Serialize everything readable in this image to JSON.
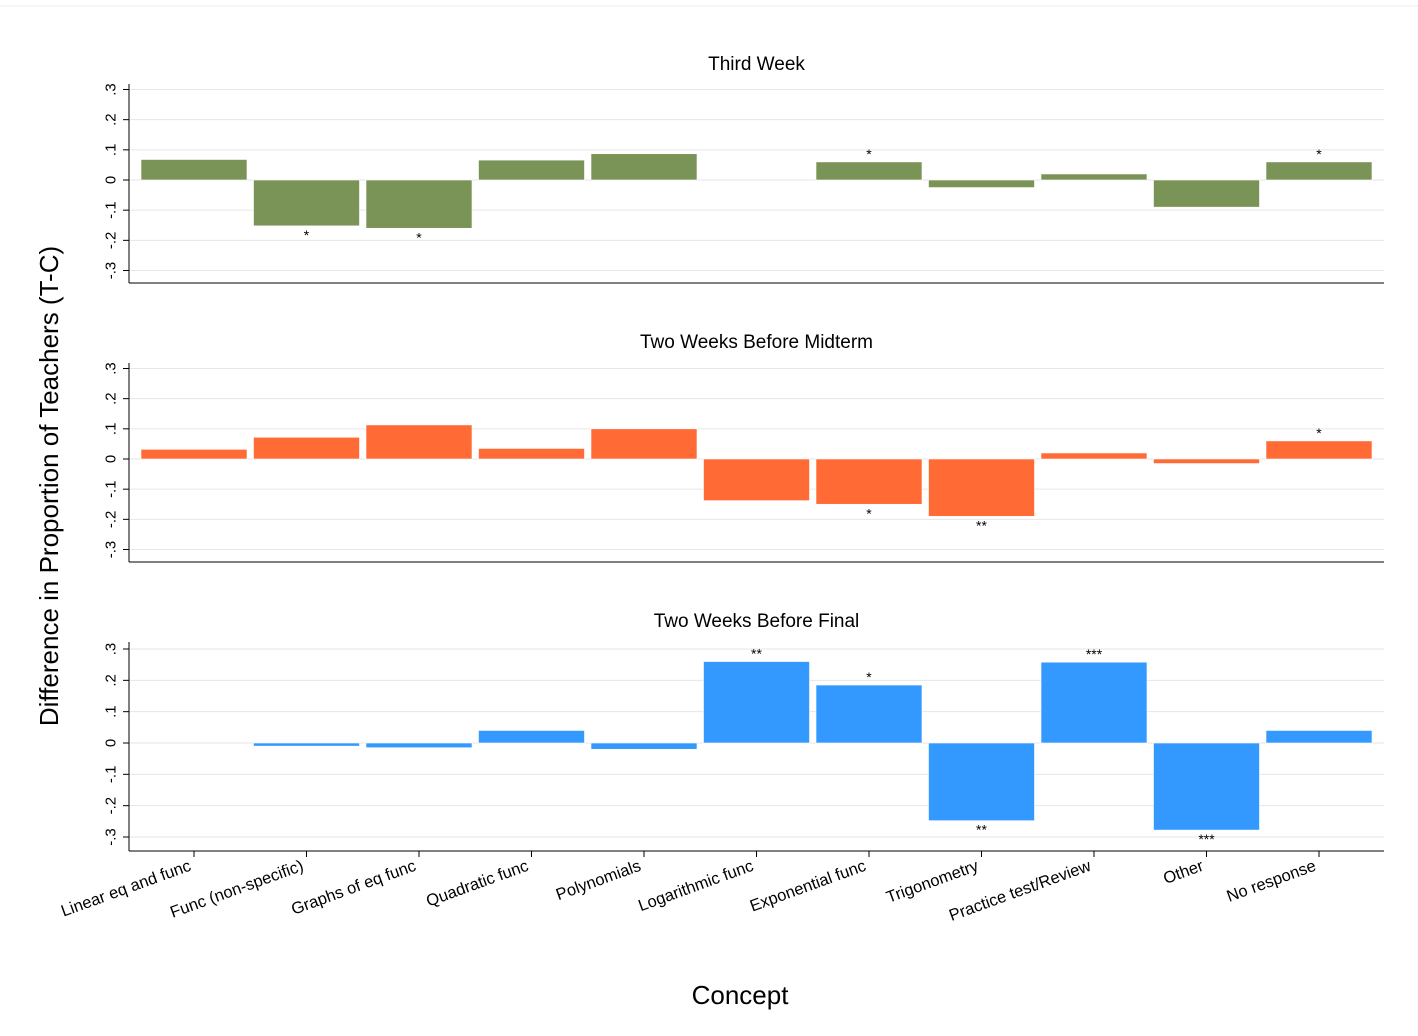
{
  "chart_data": {
    "type": "bar",
    "ylabel": "Difference in Proportion of Teachers (T-C)",
    "xlabel": "Concept",
    "categories": [
      "Linear eq and func",
      "Func (non-specific)",
      "Graphs of eq func",
      "Quadratic func",
      "Polynomials",
      "Logarithmic func",
      "Exponential func",
      "Trigonometry",
      "Practice test/Review",
      "Other",
      "No response"
    ],
    "yticks": [
      0.3,
      0.2,
      0.1,
      0,
      -0.1,
      -0.2,
      -0.3
    ],
    "ytick_labels": [
      ".3",
      ".2",
      ".1",
      "0",
      "-.1",
      "-.2",
      "-.3"
    ],
    "ylim": [
      -0.34,
      0.34
    ],
    "grid": true,
    "panels": [
      {
        "title": "Third Week",
        "color": "#7a9356",
        "values": [
          0.068,
          -0.152,
          -0.16,
          0.066,
          0.087,
          null,
          0.06,
          -0.025,
          0.02,
          -0.09,
          0.06
        ],
        "stars": [
          "",
          "*",
          "*",
          "",
          "",
          "",
          "*",
          "",
          "",
          "",
          "*"
        ]
      },
      {
        "title": "Two Weeks Before Midterm",
        "color": "#ff6a35",
        "values": [
          0.032,
          0.072,
          0.113,
          0.035,
          0.1,
          -0.138,
          -0.15,
          -0.19,
          0.02,
          -0.015,
          0.06
        ],
        "stars": [
          "",
          "",
          "",
          "",
          "",
          "",
          "*",
          "**",
          "",
          "",
          "*"
        ]
      },
      {
        "title": "Two Weeks Before Final",
        "color": "#3399ff",
        "values": [
          null,
          -0.01,
          -0.015,
          0.04,
          -0.02,
          0.26,
          0.185,
          -0.248,
          0.258,
          -0.278,
          0.04
        ],
        "stars": [
          "",
          "",
          "",
          "",
          "",
          "**",
          "*",
          "**",
          "***",
          "***",
          ""
        ]
      }
    ]
  }
}
